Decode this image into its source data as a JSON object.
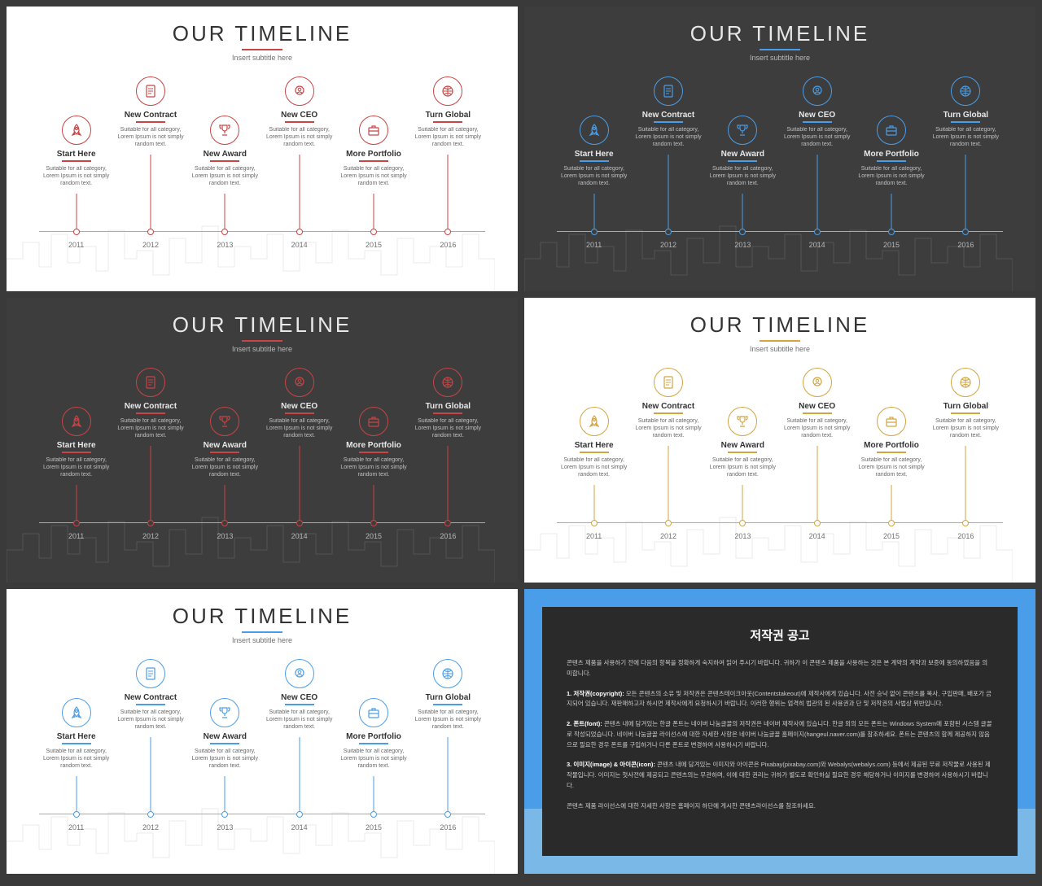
{
  "slides": [
    {
      "bg": "light",
      "accent": "#c94444"
    },
    {
      "bg": "dark",
      "accent": "#4a9de8"
    },
    {
      "bg": "dark",
      "accent": "#c94444"
    },
    {
      "bg": "light",
      "accent": "#d4a441"
    },
    {
      "bg": "light",
      "accent": "#4a9de8"
    }
  ],
  "common": {
    "title": "OUR TIMELINE",
    "subtitle": "Insert subtitle here",
    "items": [
      {
        "title": "Start Here",
        "row": "lower",
        "year": "2011",
        "icon": "rocket"
      },
      {
        "title": "New Contract",
        "row": "upper",
        "year": "2012",
        "icon": "contract"
      },
      {
        "title": "New Award",
        "row": "lower",
        "year": "2013",
        "icon": "trophy"
      },
      {
        "title": "New CEO",
        "row": "upper",
        "year": "2014",
        "icon": "head"
      },
      {
        "title": "More Portfolio",
        "row": "lower",
        "year": "2015",
        "icon": "briefcase"
      },
      {
        "title": "Turn Global",
        "row": "upper",
        "year": "2016",
        "icon": "globe"
      }
    ],
    "desc1": "Suitable for all category,",
    "desc2": "Lorem Ipsum is not simply",
    "desc3": "random text."
  },
  "copyright": {
    "title": "저작권 공고",
    "p1": "콘텐츠 제품을 사용하기 전에 다음의 항목을 정확하게 숙지하여 읽어 주시기 바랍니다. 귀하가 이 콘텐츠 제품을 사용하는 것은 본 계약의 계약과 보증에 동의하였음을 의미합니다.",
    "p2_label": "1. 저작권(copyright):",
    "p2": "모든 콘텐츠의 소유 및 저작권은 콘텐츠테이크아웃(Contentstakeout)에 제작사에게 있습니다. 사전 승낙 없이 콘텐츠를 복사, 구입판매, 배포가 금지되어 있습니다. 재판매하고자 하시면 제작사에게 요청하시기 바랍니다. 이러한 행위는 엄격히 법관의 된 사용권과 단 및 저작권의 사법상 위반입니다.",
    "p3_label": "2. 폰트(font):",
    "p3": "콘텐츠 내에 담겨있는 한글 폰트는 네이버 나눔글꼴의 저작권은 네이버 제작사에 있습니다. 한글 외의 모든 폰트는 Windows System에 포함된 시스템 글꼴로 작성되었습니다. 네이버 나눔글꼴 라이선스에 대한 자세한 사항은 네이버 나눔글꼴 홈페이지(hangeul.naver.com)를 참조하세요. 폰트는 콘텐츠의 함께 제공하지 않음으로 필요한 경우 폰트를 구입하거나 다른 폰트로 변경하여 사용하시기 바랍니다.",
    "p4_label": "3. 이미지(image) & 아이콘(icon):",
    "p4": "콘텐츠 내에 담겨있는 이미지와 아이콘은 Pixabay(pixabay.com)와 Webalys(webalys.com) 등에서 제공된 무료 저작물로 사용된 제작물입니다. 이미지는 첫사전에 제공되고 콘텐츠의는 무관하며, 이에 대한 권리는 귀하가 별도로 확인하실 필요한 경우 해당하거나 이미지를 변경하여 사용하시기 바랍니다.",
    "p5": "콘텐츠 제품 라이선스에 대한 자세한 사항은 홈페이지 하단에 게시한 콘텐츠라이선스를 참조하세요."
  },
  "colors": {
    "light_bg": "#ffffff",
    "dark_bg": "#3d3d3d",
    "page_bg": "#3a3a3a",
    "cr_border": "#4a9de8",
    "cr_bottom": "#7ab8e8",
    "cr_inner": "#2a2a2a"
  }
}
